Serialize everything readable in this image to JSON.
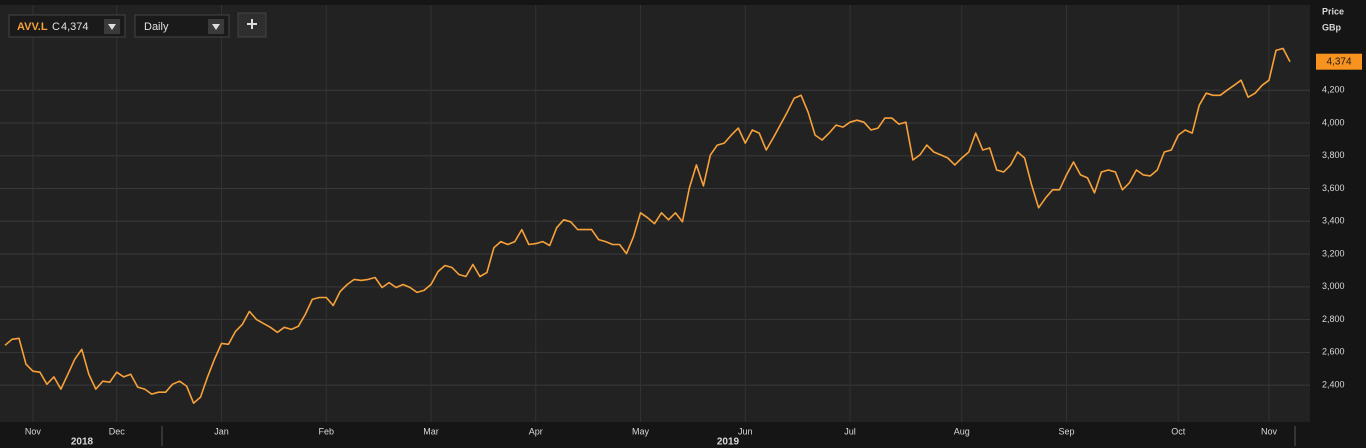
{
  "toolbar": {
    "symbol": "AVV.L",
    "close_prefix": "C",
    "close": "4,374",
    "interval": "Daily"
  },
  "chart_data": {
    "type": "line",
    "y_axis_label": [
      "Price",
      "GBp"
    ],
    "x_groups": [
      "2018",
      "2019"
    ],
    "categories": [
      null,
      null,
      null,
      null,
      "Nov",
      null,
      null,
      null,
      null,
      null,
      null,
      null,
      null,
      null,
      null,
      null,
      "Dec",
      null,
      null,
      null,
      null,
      null,
      null,
      null,
      null,
      null,
      null,
      null,
      null,
      null,
      null,
      "Jan",
      null,
      null,
      null,
      null,
      null,
      null,
      null,
      null,
      null,
      null,
      null,
      null,
      null,
      null,
      "Feb",
      null,
      null,
      null,
      null,
      null,
      null,
      null,
      null,
      null,
      null,
      null,
      null,
      null,
      null,
      "Mar",
      null,
      null,
      null,
      null,
      null,
      null,
      null,
      null,
      null,
      null,
      null,
      null,
      null,
      null,
      "Apr",
      null,
      null,
      null,
      null,
      null,
      null,
      null,
      null,
      null,
      null,
      null,
      null,
      null,
      null,
      "May",
      null,
      null,
      null,
      null,
      null,
      null,
      null,
      null,
      null,
      null,
      null,
      null,
      null,
      null,
      "Jun",
      null,
      null,
      null,
      null,
      null,
      null,
      null,
      null,
      null,
      null,
      null,
      null,
      null,
      null,
      "Jul",
      null,
      null,
      null,
      null,
      null,
      null,
      null,
      null,
      null,
      null,
      null,
      null,
      null,
      null,
      null,
      "Aug",
      null,
      null,
      null,
      null,
      null,
      null,
      null,
      null,
      null,
      null,
      null,
      null,
      null,
      null,
      "Sep",
      null,
      null,
      null,
      null,
      null,
      null,
      null,
      null,
      null,
      null,
      null,
      null,
      null,
      null,
      null,
      "Oct",
      null,
      null,
      null,
      null,
      null,
      null,
      null,
      null,
      null,
      null,
      null,
      null,
      "Nov",
      null,
      null,
      null
    ],
    "series": [
      {
        "name": "AVV.L",
        "color": "#f7a13a",
        "values": [
          2643,
          2680,
          2686,
          2528,
          2485,
          2479,
          2406,
          2450,
          2376,
          2467,
          2558,
          2619,
          2467,
          2376,
          2424,
          2418,
          2479,
          2450,
          2467,
          2388,
          2376,
          2345,
          2357,
          2357,
          2406,
          2424,
          2394,
          2290,
          2327,
          2449,
          2558,
          2655,
          2649,
          2728,
          2771,
          2850,
          2801,
          2777,
          2753,
          2722,
          2753,
          2740,
          2759,
          2832,
          2923,
          2935,
          2935,
          2886,
          2972,
          3014,
          3045,
          3039,
          3045,
          3057,
          2996,
          3026,
          2996,
          3014,
          2996,
          2966,
          2978,
          3014,
          3093,
          3130,
          3118,
          3075,
          3063,
          3136,
          3063,
          3087,
          3239,
          3276,
          3258,
          3276,
          3349,
          3258,
          3264,
          3276,
          3252,
          3361,
          3409,
          3397,
          3349,
          3349,
          3349,
          3288,
          3276,
          3258,
          3258,
          3203,
          3306,
          3452,
          3422,
          3385,
          3452,
          3409,
          3452,
          3397,
          3604,
          3744,
          3616,
          3805,
          3865,
          3877,
          3926,
          3969,
          3877,
          3957,
          3938,
          3835,
          3908,
          3987,
          4066,
          4151,
          4169,
          4066,
          3926,
          3896,
          3938,
          3987,
          3975,
          4005,
          4017,
          4005,
          3957,
          3969,
          4030,
          4030,
          3993,
          4005,
          3774,
          3805,
          3865,
          3823,
          3805,
          3786,
          3744,
          3786,
          3823,
          3938,
          3835,
          3847,
          3713,
          3701,
          3744,
          3823,
          3786,
          3622,
          3482,
          3543,
          3592,
          3592,
          3683,
          3762,
          3683,
          3665,
          3573,
          3701,
          3713,
          3701,
          3592,
          3635,
          3713,
          3683,
          3677,
          3713,
          3823,
          3835,
          3926,
          3957,
          3938,
          4108,
          4182,
          4169,
          4169,
          4200,
          4230,
          4261,
          4157,
          4182,
          4230,
          4261,
          4443,
          4455,
          4374
        ]
      }
    ],
    "last_label": "4,374",
    "ylim": [
      2175,
      4720
    ],
    "yticks": [
      {
        "value": 2400,
        "label": "2,400"
      },
      {
        "value": 2600,
        "label": "2,600"
      },
      {
        "value": 2800,
        "label": "2,800"
      },
      {
        "value": 3000,
        "label": "3,000"
      },
      {
        "value": 3200,
        "label": "3,200"
      },
      {
        "value": 3400,
        "label": "3,400"
      },
      {
        "value": 3600,
        "label": "3,600"
      },
      {
        "value": 3800,
        "label": "3,800"
      },
      {
        "value": 4000,
        "label": "4,000"
      },
      {
        "value": 4200,
        "label": "4,200"
      }
    ],
    "grid": true
  }
}
